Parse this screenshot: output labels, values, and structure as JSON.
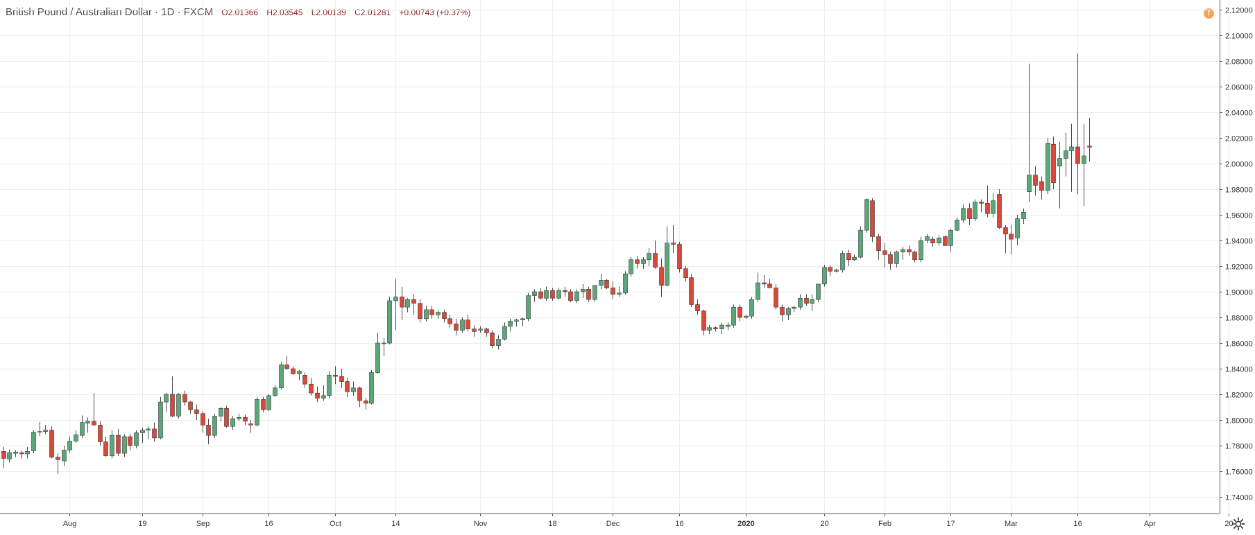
{
  "header": {
    "symbol": "British Pound / Australian Dollar · 1D · FXCM",
    "open": "O2.01366",
    "high": "H2.03545",
    "low": "L2.00139",
    "close": "C2.01281",
    "change": "+0.00743 (+0.37%)"
  },
  "colors": {
    "up": "#5aa77a",
    "down": "#d9483a",
    "wick": "#4a4a4a",
    "grid": "#ececec",
    "header_values": "#8a1f17",
    "alert": "#f7a35c"
  },
  "icons": {
    "alert": "warning-dot-icon",
    "settings": "gear-icon"
  },
  "chart_data": {
    "type": "candlestick",
    "ylim": [
      1.73,
      2.125
    ],
    "y_ticks": [
      "2.12000",
      "2.10000",
      "2.08000",
      "2.06000",
      "2.04000",
      "2.02000",
      "2.00000",
      "1.98000",
      "1.96000",
      "1.94000",
      "1.92000",
      "1.90000",
      "1.88000",
      "1.86000",
      "1.84000",
      "1.82000",
      "1.80000",
      "1.78000",
      "1.76000",
      "1.74000"
    ],
    "x_labels": [
      {
        "label": "Aug",
        "index": 11,
        "bold": false
      },
      {
        "label": "19",
        "index": 23,
        "bold": false
      },
      {
        "label": "Sep",
        "index": 33,
        "bold": false
      },
      {
        "label": "16",
        "index": 44,
        "bold": false
      },
      {
        "label": "Oct",
        "index": 55,
        "bold": false
      },
      {
        "label": "14",
        "index": 65,
        "bold": false
      },
      {
        "label": "Nov",
        "index": 79,
        "bold": false
      },
      {
        "label": "18",
        "index": 91,
        "bold": false
      },
      {
        "label": "Dec",
        "index": 101,
        "bold": false
      },
      {
        "label": "16",
        "index": 112,
        "bold": false
      },
      {
        "label": "2020",
        "index": 123,
        "bold": true
      },
      {
        "label": "20",
        "index": 136,
        "bold": false
      },
      {
        "label": "Feb",
        "index": 146,
        "bold": false
      },
      {
        "label": "17",
        "index": 157,
        "bold": false
      },
      {
        "label": "Mar",
        "index": 167,
        "bold": false
      },
      {
        "label": "16",
        "index": 178,
        "bold": false
      },
      {
        "label": "Apr",
        "index": 190,
        "bold": false
      },
      {
        "label": "20",
        "index": 203,
        "bold": false
      }
    ],
    "candles": [
      {
        "o": 1.7755,
        "h": 1.779,
        "l": 1.7625,
        "c": 1.77
      },
      {
        "o": 1.7695,
        "h": 1.777,
        "l": 1.767,
        "c": 1.7745
      },
      {
        "o": 1.774,
        "h": 1.7765,
        "l": 1.771,
        "c": 1.775
      },
      {
        "o": 1.7745,
        "h": 1.776,
        "l": 1.77,
        "c": 1.7735
      },
      {
        "o": 1.7735,
        "h": 1.779,
        "l": 1.77,
        "c": 1.7755
      },
      {
        "o": 1.776,
        "h": 1.792,
        "l": 1.774,
        "c": 1.7905
      },
      {
        "o": 1.7905,
        "h": 1.7985,
        "l": 1.7875,
        "c": 1.791
      },
      {
        "o": 1.791,
        "h": 1.796,
        "l": 1.789,
        "c": 1.792
      },
      {
        "o": 1.792,
        "h": 1.795,
        "l": 1.77,
        "c": 1.771
      },
      {
        "o": 1.771,
        "h": 1.774,
        "l": 1.758,
        "c": 1.769
      },
      {
        "o": 1.768,
        "h": 1.78,
        "l": 1.764,
        "c": 1.7765
      },
      {
        "o": 1.7765,
        "h": 1.787,
        "l": 1.7745,
        "c": 1.7835
      },
      {
        "o": 1.7835,
        "h": 1.792,
        "l": 1.782,
        "c": 1.7885
      },
      {
        "o": 1.788,
        "h": 1.8035,
        "l": 1.786,
        "c": 1.798
      },
      {
        "o": 1.7975,
        "h": 1.802,
        "l": 1.79,
        "c": 1.799
      },
      {
        "o": 1.799,
        "h": 1.821,
        "l": 1.796,
        "c": 1.796
      },
      {
        "o": 1.796,
        "h": 1.799,
        "l": 1.78,
        "c": 1.783
      },
      {
        "o": 1.783,
        "h": 1.787,
        "l": 1.7715,
        "c": 1.772
      },
      {
        "o": 1.772,
        "h": 1.792,
        "l": 1.77,
        "c": 1.788
      },
      {
        "o": 1.788,
        "h": 1.793,
        "l": 1.772,
        "c": 1.774
      },
      {
        "o": 1.774,
        "h": 1.789,
        "l": 1.771,
        "c": 1.787
      },
      {
        "o": 1.787,
        "h": 1.789,
        "l": 1.776,
        "c": 1.78
      },
      {
        "o": 1.78,
        "h": 1.792,
        "l": 1.778,
        "c": 1.79
      },
      {
        "o": 1.79,
        "h": 1.794,
        "l": 1.782,
        "c": 1.792
      },
      {
        "o": 1.792,
        "h": 1.795,
        "l": 1.785,
        "c": 1.793
      },
      {
        "o": 1.793,
        "h": 1.798,
        "l": 1.783,
        "c": 1.786
      },
      {
        "o": 1.786,
        "h": 1.818,
        "l": 1.785,
        "c": 1.814
      },
      {
        "o": 1.814,
        "h": 1.821,
        "l": 1.806,
        "c": 1.82
      },
      {
        "o": 1.82,
        "h": 1.834,
        "l": 1.802,
        "c": 1.803
      },
      {
        "o": 1.803,
        "h": 1.821,
        "l": 1.801,
        "c": 1.82
      },
      {
        "o": 1.82,
        "h": 1.823,
        "l": 1.811,
        "c": 1.814
      },
      {
        "o": 1.814,
        "h": 1.815,
        "l": 1.805,
        "c": 1.808
      },
      {
        "o": 1.808,
        "h": 1.812,
        "l": 1.8,
        "c": 1.805
      },
      {
        "o": 1.805,
        "h": 1.807,
        "l": 1.79,
        "c": 1.796
      },
      {
        "o": 1.796,
        "h": 1.801,
        "l": 1.781,
        "c": 1.788
      },
      {
        "o": 1.788,
        "h": 1.805,
        "l": 1.786,
        "c": 1.803
      },
      {
        "o": 1.803,
        "h": 1.81,
        "l": 1.799,
        "c": 1.809
      },
      {
        "o": 1.809,
        "h": 1.811,
        "l": 1.794,
        "c": 1.795
      },
      {
        "o": 1.795,
        "h": 1.803,
        "l": 1.792,
        "c": 1.801
      },
      {
        "o": 1.801,
        "h": 1.805,
        "l": 1.799,
        "c": 1.802
      },
      {
        "o": 1.802,
        "h": 1.804,
        "l": 1.796,
        "c": 1.799
      },
      {
        "o": 1.797,
        "h": 1.8,
        "l": 1.79,
        "c": 1.796
      },
      {
        "o": 1.796,
        "h": 1.818,
        "l": 1.795,
        "c": 1.816
      },
      {
        "o": 1.816,
        "h": 1.818,
        "l": 1.806,
        "c": 1.808
      },
      {
        "o": 1.808,
        "h": 1.82,
        "l": 1.807,
        "c": 1.819
      },
      {
        "o": 1.819,
        "h": 1.827,
        "l": 1.818,
        "c": 1.825
      },
      {
        "o": 1.825,
        "h": 1.845,
        "l": 1.824,
        "c": 1.843
      },
      {
        "o": 1.843,
        "h": 1.85,
        "l": 1.839,
        "c": 1.84
      },
      {
        "o": 1.84,
        "h": 1.842,
        "l": 1.835,
        "c": 1.836
      },
      {
        "o": 1.836,
        "h": 1.839,
        "l": 1.831,
        "c": 1.838
      },
      {
        "o": 1.835,
        "h": 1.837,
        "l": 1.825,
        "c": 1.828
      },
      {
        "o": 1.828,
        "h": 1.833,
        "l": 1.819,
        "c": 1.821
      },
      {
        "o": 1.821,
        "h": 1.826,
        "l": 1.814,
        "c": 1.817
      },
      {
        "o": 1.817,
        "h": 1.827,
        "l": 1.815,
        "c": 1.819
      },
      {
        "o": 1.819,
        "h": 1.838,
        "l": 1.817,
        "c": 1.835
      },
      {
        "o": 1.835,
        "h": 1.842,
        "l": 1.828,
        "c": 1.834
      },
      {
        "o": 1.834,
        "h": 1.84,
        "l": 1.825,
        "c": 1.83
      },
      {
        "o": 1.83,
        "h": 1.833,
        "l": 1.818,
        "c": 1.822
      },
      {
        "o": 1.822,
        "h": 1.83,
        "l": 1.819,
        "c": 1.825
      },
      {
        "o": 1.825,
        "h": 1.826,
        "l": 1.81,
        "c": 1.815
      },
      {
        "o": 1.815,
        "h": 1.817,
        "l": 1.808,
        "c": 1.813
      },
      {
        "o": 1.813,
        "h": 1.839,
        "l": 1.812,
        "c": 1.837
      },
      {
        "o": 1.837,
        "h": 1.868,
        "l": 1.836,
        "c": 1.86
      },
      {
        "o": 1.86,
        "h": 1.864,
        "l": 1.85,
        "c": 1.86
      },
      {
        "o": 1.86,
        "h": 1.896,
        "l": 1.859,
        "c": 1.893
      },
      {
        "o": 1.893,
        "h": 1.91,
        "l": 1.87,
        "c": 1.896
      },
      {
        "o": 1.896,
        "h": 1.904,
        "l": 1.878,
        "c": 1.888
      },
      {
        "o": 1.888,
        "h": 1.895,
        "l": 1.884,
        "c": 1.894
      },
      {
        "o": 1.894,
        "h": 1.898,
        "l": 1.882,
        "c": 1.891
      },
      {
        "o": 1.891,
        "h": 1.894,
        "l": 1.876,
        "c": 1.879
      },
      {
        "o": 1.879,
        "h": 1.889,
        "l": 1.877,
        "c": 1.886
      },
      {
        "o": 1.886,
        "h": 1.889,
        "l": 1.879,
        "c": 1.882
      },
      {
        "o": 1.882,
        "h": 1.886,
        "l": 1.879,
        "c": 1.884
      },
      {
        "o": 1.884,
        "h": 1.886,
        "l": 1.876,
        "c": 1.879
      },
      {
        "o": 1.879,
        "h": 1.882,
        "l": 1.872,
        "c": 1.875
      },
      {
        "o": 1.875,
        "h": 1.879,
        "l": 1.866,
        "c": 1.87
      },
      {
        "o": 1.87,
        "h": 1.88,
        "l": 1.868,
        "c": 1.878
      },
      {
        "o": 1.878,
        "h": 1.882,
        "l": 1.869,
        "c": 1.871
      },
      {
        "o": 1.871,
        "h": 1.874,
        "l": 1.865,
        "c": 1.869
      },
      {
        "o": 1.87,
        "h": 1.873,
        "l": 1.868,
        "c": 1.871
      },
      {
        "o": 1.871,
        "h": 1.872,
        "l": 1.865,
        "c": 1.868
      },
      {
        "o": 1.868,
        "h": 1.87,
        "l": 1.856,
        "c": 1.858
      },
      {
        "o": 1.858,
        "h": 1.866,
        "l": 1.855,
        "c": 1.863
      },
      {
        "o": 1.863,
        "h": 1.876,
        "l": 1.862,
        "c": 1.873
      },
      {
        "o": 1.873,
        "h": 1.879,
        "l": 1.869,
        "c": 1.877
      },
      {
        "o": 1.877,
        "h": 1.879,
        "l": 1.873,
        "c": 1.878
      },
      {
        "o": 1.878,
        "h": 1.88,
        "l": 1.873,
        "c": 1.879
      },
      {
        "o": 1.879,
        "h": 1.899,
        "l": 1.877,
        "c": 1.897
      },
      {
        "o": 1.897,
        "h": 1.902,
        "l": 1.892,
        "c": 1.9
      },
      {
        "o": 1.9,
        "h": 1.903,
        "l": 1.894,
        "c": 1.895
      },
      {
        "o": 1.895,
        "h": 1.904,
        "l": 1.893,
        "c": 1.901
      },
      {
        "o": 1.901,
        "h": 1.903,
        "l": 1.893,
        "c": 1.895
      },
      {
        "o": 1.895,
        "h": 1.903,
        "l": 1.894,
        "c": 1.901
      },
      {
        "o": 1.901,
        "h": 1.904,
        "l": 1.896,
        "c": 1.9
      },
      {
        "o": 1.9,
        "h": 1.902,
        "l": 1.892,
        "c": 1.893
      },
      {
        "o": 1.893,
        "h": 1.902,
        "l": 1.891,
        "c": 1.9
      },
      {
        "o": 1.9,
        "h": 1.906,
        "l": 1.895,
        "c": 1.902
      },
      {
        "o": 1.902,
        "h": 1.904,
        "l": 1.892,
        "c": 1.894
      },
      {
        "o": 1.894,
        "h": 1.905,
        "l": 1.892,
        "c": 1.905
      },
      {
        "o": 1.905,
        "h": 1.914,
        "l": 1.902,
        "c": 1.909
      },
      {
        "o": 1.909,
        "h": 1.91,
        "l": 1.902,
        "c": 1.903
      },
      {
        "o": 1.903,
        "h": 1.908,
        "l": 1.894,
        "c": 1.898
      },
      {
        "o": 1.898,
        "h": 1.904,
        "l": 1.896,
        "c": 1.899
      },
      {
        "o": 1.899,
        "h": 1.916,
        "l": 1.898,
        "c": 1.914
      },
      {
        "o": 1.914,
        "h": 1.927,
        "l": 1.912,
        "c": 1.925
      },
      {
        "o": 1.925,
        "h": 1.928,
        "l": 1.918,
        "c": 1.922
      },
      {
        "o": 1.922,
        "h": 1.927,
        "l": 1.918,
        "c": 1.925
      },
      {
        "o": 1.925,
        "h": 1.934,
        "l": 1.92,
        "c": 1.93
      },
      {
        "o": 1.93,
        "h": 1.94,
        "l": 1.918,
        "c": 1.919
      },
      {
        "o": 1.919,
        "h": 1.926,
        "l": 1.896,
        "c": 1.905
      },
      {
        "o": 1.905,
        "h": 1.951,
        "l": 1.904,
        "c": 1.938
      },
      {
        "o": 1.938,
        "h": 1.952,
        "l": 1.93,
        "c": 1.937
      },
      {
        "o": 1.937,
        "h": 1.939,
        "l": 1.915,
        "c": 1.918
      },
      {
        "o": 1.918,
        "h": 1.92,
        "l": 1.908,
        "c": 1.911
      },
      {
        "o": 1.911,
        "h": 1.914,
        "l": 1.888,
        "c": 1.89
      },
      {
        "o": 1.89,
        "h": 1.894,
        "l": 1.882,
        "c": 1.885
      },
      {
        "o": 1.885,
        "h": 1.886,
        "l": 1.866,
        "c": 1.87
      },
      {
        "o": 1.87,
        "h": 1.874,
        "l": 1.867,
        "c": 1.872
      },
      {
        "o": 1.872,
        "h": 1.873,
        "l": 1.869,
        "c": 1.871
      },
      {
        "o": 1.871,
        "h": 1.876,
        "l": 1.867,
        "c": 1.874
      },
      {
        "o": 1.873,
        "h": 1.876,
        "l": 1.87,
        "c": 1.874
      },
      {
        "o": 1.874,
        "h": 1.89,
        "l": 1.872,
        "c": 1.888
      },
      {
        "o": 1.888,
        "h": 1.89,
        "l": 1.877,
        "c": 1.88
      },
      {
        "o": 1.88,
        "h": 1.882,
        "l": 1.879,
        "c": 1.881
      },
      {
        "o": 1.881,
        "h": 1.896,
        "l": 1.879,
        "c": 1.894
      },
      {
        "o": 1.894,
        "h": 1.915,
        "l": 1.892,
        "c": 1.907
      },
      {
        "o": 1.907,
        "h": 1.913,
        "l": 1.903,
        "c": 1.906
      },
      {
        "o": 1.906,
        "h": 1.91,
        "l": 1.903,
        "c": 1.903
      },
      {
        "o": 1.903,
        "h": 1.906,
        "l": 1.886,
        "c": 1.888
      },
      {
        "o": 1.888,
        "h": 1.89,
        "l": 1.877,
        "c": 1.882
      },
      {
        "o": 1.882,
        "h": 1.888,
        "l": 1.878,
        "c": 1.887
      },
      {
        "o": 1.887,
        "h": 1.889,
        "l": 1.884,
        "c": 1.888
      },
      {
        "o": 1.888,
        "h": 1.898,
        "l": 1.886,
        "c": 1.895
      },
      {
        "o": 1.895,
        "h": 1.898,
        "l": 1.889,
        "c": 1.891
      },
      {
        "o": 1.891,
        "h": 1.898,
        "l": 1.885,
        "c": 1.894
      },
      {
        "o": 1.894,
        "h": 1.906,
        "l": 1.892,
        "c": 1.906
      },
      {
        "o": 1.906,
        "h": 1.921,
        "l": 1.904,
        "c": 1.919
      },
      {
        "o": 1.919,
        "h": 1.921,
        "l": 1.912,
        "c": 1.916
      },
      {
        "o": 1.916,
        "h": 1.918,
        "l": 1.915,
        "c": 1.917
      },
      {
        "o": 1.917,
        "h": 1.932,
        "l": 1.915,
        "c": 1.93
      },
      {
        "o": 1.93,
        "h": 1.933,
        "l": 1.92,
        "c": 1.925
      },
      {
        "o": 1.925,
        "h": 1.929,
        "l": 1.924,
        "c": 1.927
      },
      {
        "o": 1.927,
        "h": 1.951,
        "l": 1.926,
        "c": 1.948
      },
      {
        "o": 1.948,
        "h": 1.973,
        "l": 1.946,
        "c": 1.972
      },
      {
        "o": 1.971,
        "h": 1.973,
        "l": 1.939,
        "c": 1.943
      },
      {
        "o": 1.943,
        "h": 1.945,
        "l": 1.925,
        "c": 1.932
      },
      {
        "o": 1.932,
        "h": 1.938,
        "l": 1.919,
        "c": 1.929
      },
      {
        "o": 1.929,
        "h": 1.931,
        "l": 1.917,
        "c": 1.922
      },
      {
        "o": 1.922,
        "h": 1.932,
        "l": 1.919,
        "c": 1.931
      },
      {
        "o": 1.931,
        "h": 1.935,
        "l": 1.925,
        "c": 1.933
      },
      {
        "o": 1.933,
        "h": 1.936,
        "l": 1.928,
        "c": 1.931
      },
      {
        "o": 1.931,
        "h": 1.932,
        "l": 1.923,
        "c": 1.925
      },
      {
        "o": 1.925,
        "h": 1.943,
        "l": 1.923,
        "c": 1.94
      },
      {
        "o": 1.94,
        "h": 1.945,
        "l": 1.938,
        "c": 1.943
      },
      {
        "o": 1.941,
        "h": 1.943,
        "l": 1.935,
        "c": 1.938
      },
      {
        "o": 1.938,
        "h": 1.944,
        "l": 1.936,
        "c": 1.942
      },
      {
        "o": 1.943,
        "h": 1.944,
        "l": 1.936,
        "c": 1.936
      },
      {
        "o": 1.936,
        "h": 1.949,
        "l": 1.931,
        "c": 1.948
      },
      {
        "o": 1.948,
        "h": 1.958,
        "l": 1.947,
        "c": 1.956
      },
      {
        "o": 1.956,
        "h": 1.968,
        "l": 1.954,
        "c": 1.965
      },
      {
        "o": 1.965,
        "h": 1.969,
        "l": 1.952,
        "c": 1.957
      },
      {
        "o": 1.957,
        "h": 1.972,
        "l": 1.955,
        "c": 1.97
      },
      {
        "o": 1.97,
        "h": 1.972,
        "l": 1.962,
        "c": 1.969
      },
      {
        "o": 1.969,
        "h": 1.983,
        "l": 1.958,
        "c": 1.961
      },
      {
        "o": 1.961,
        "h": 1.977,
        "l": 1.958,
        "c": 1.971
      },
      {
        "o": 1.976,
        "h": 1.98,
        "l": 1.949,
        "c": 1.95
      },
      {
        "o": 1.95,
        "h": 1.952,
        "l": 1.93,
        "c": 1.945
      },
      {
        "o": 1.945,
        "h": 1.952,
        "l": 1.929,
        "c": 1.941
      },
      {
        "o": 1.942,
        "h": 1.96,
        "l": 1.936,
        "c": 1.957
      },
      {
        "o": 1.957,
        "h": 1.965,
        "l": 1.953,
        "c": 1.962
      },
      {
        "o": 1.978,
        "h": 2.078,
        "l": 1.97,
        "c": 1.991
      },
      {
        "o": 1.991,
        "h": 1.998,
        "l": 1.975,
        "c": 1.983
      },
      {
        "o": 1.986,
        "h": 1.99,
        "l": 1.972,
        "c": 1.979
      },
      {
        "o": 1.979,
        "h": 2.02,
        "l": 1.976,
        "c": 2.016
      },
      {
        "o": 2.015,
        "h": 2.021,
        "l": 1.98,
        "c": 1.985
      },
      {
        "o": 1.998,
        "h": 2.017,
        "l": 1.965,
        "c": 2.004
      },
      {
        "o": 2.004,
        "h": 2.024,
        "l": 1.99,
        "c": 2.01
      },
      {
        "o": 2.01,
        "h": 2.031,
        "l": 1.978,
        "c": 2.013
      },
      {
        "o": 2.013,
        "h": 2.086,
        "l": 1.976,
        "c": 2.0
      },
      {
        "o": 2.0,
        "h": 2.031,
        "l": 1.967,
        "c": 2.006
      },
      {
        "o": 2.01366,
        "h": 2.03545,
        "l": 2.00139,
        "c": 2.01281
      }
    ]
  }
}
